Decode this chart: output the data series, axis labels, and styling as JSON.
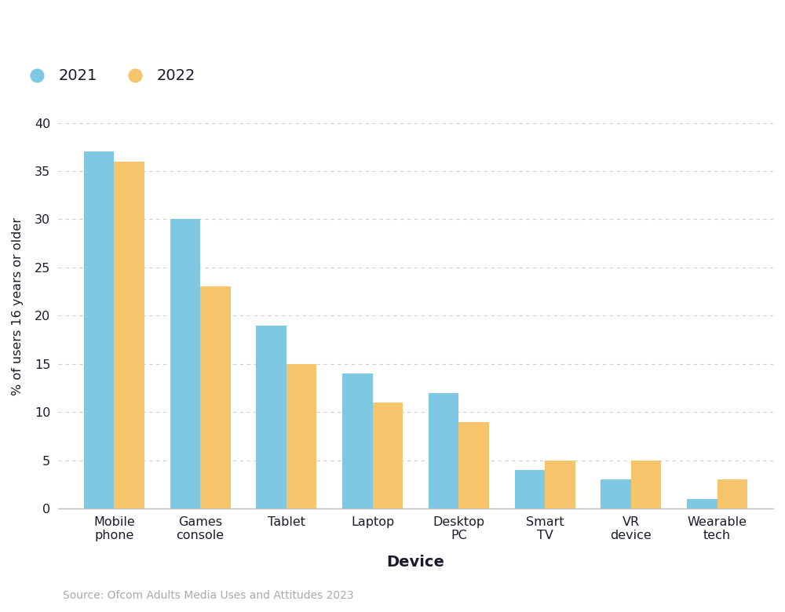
{
  "categories": [
    "Mobile\nphone",
    "Games\nconsole",
    "Tablet",
    "Laptop",
    "Desktop\nPC",
    "Smart\nTV",
    "VR\ndevice",
    "Wearable\ntech"
  ],
  "values_2021": [
    37,
    30,
    19,
    14,
    12,
    4,
    3,
    1
  ],
  "values_2022": [
    36,
    23,
    15,
    11,
    9,
    5,
    5,
    3
  ],
  "color_2021": "#7EC8E3",
  "color_2022": "#F5C46B",
  "xlabel": "Device",
  "ylabel": "% of users 16 years or older",
  "ylim": [
    0,
    42
  ],
  "yticks": [
    0,
    5,
    10,
    15,
    20,
    25,
    30,
    35,
    40
  ],
  "legend_labels": [
    "2021",
    "2022"
  ],
  "source_text": "Source: Ofcom Adults Media Uses and Attitudes 2023",
  "background_color": "#ffffff",
  "bar_width": 0.35,
  "grid_color": "#cccccc",
  "text_color": "#1a1a2e",
  "axis_color": "#bbbbbb",
  "source_color": "#aaaaaa"
}
